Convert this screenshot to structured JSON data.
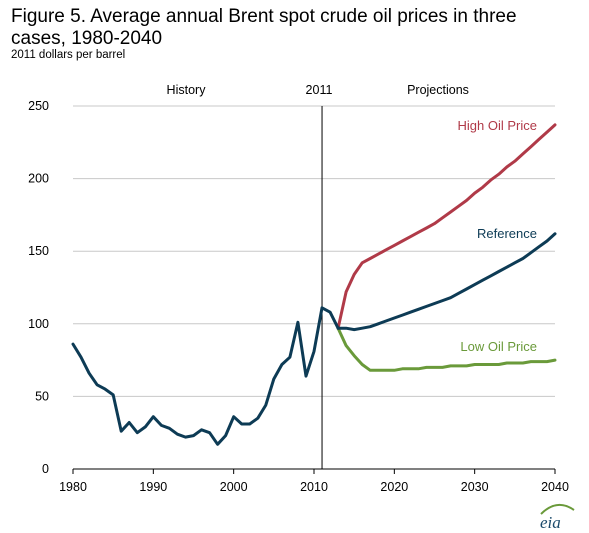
{
  "chart_data": {
    "type": "line",
    "title": "Figure 5. Average annual Brent spot crude oil prices in three cases, 1980-2040",
    "subtitle": "2011 dollars per barrel",
    "xlim": [
      1980,
      2040
    ],
    "ylim": [
      0,
      250
    ],
    "xticks": [
      1980,
      1990,
      2000,
      2010,
      2020,
      2030,
      2040
    ],
    "yticks": [
      0,
      50,
      100,
      150,
      200,
      250
    ],
    "grid": "horizontal",
    "divider": {
      "x": 2011,
      "label": "2011"
    },
    "region_labels": {
      "left": "History",
      "right": "Projections"
    },
    "colors": {
      "history": "#0d3b55",
      "reference": "#0d3b55",
      "high": "#b03a48",
      "low": "#6a9a3a"
    },
    "series": [
      {
        "key": "history",
        "x": [
          1980,
          1981,
          1982,
          1983,
          1984,
          1985,
          1986,
          1987,
          1988,
          1989,
          1990,
          1991,
          1992,
          1993,
          1994,
          1995,
          1996,
          1997,
          1998,
          1999,
          2000,
          2001,
          2002,
          2003,
          2004,
          2005,
          2006,
          2007,
          2008,
          2009,
          2010,
          2011,
          2012,
          2013
        ],
        "y": [
          86,
          77,
          66,
          58,
          55,
          51,
          26,
          32,
          25,
          29,
          36,
          30,
          28,
          24,
          22,
          23,
          27,
          25,
          17,
          23,
          36,
          31,
          31,
          35,
          44,
          62,
          72,
          77,
          101,
          64,
          81,
          111,
          108,
          97
        ]
      },
      {
        "key": "reference",
        "name": "Reference",
        "x": [
          2013,
          2014,
          2015,
          2016,
          2017,
          2018,
          2019,
          2020,
          2021,
          2022,
          2023,
          2024,
          2025,
          2026,
          2027,
          2028,
          2029,
          2030,
          2031,
          2032,
          2033,
          2034,
          2035,
          2036,
          2037,
          2038,
          2039,
          2040
        ],
        "y": [
          97,
          97,
          96,
          97,
          98,
          100,
          102,
          104,
          106,
          108,
          110,
          112,
          114,
          116,
          118,
          121,
          124,
          127,
          130,
          133,
          136,
          139,
          142,
          145,
          149,
          153,
          157,
          162
        ]
      },
      {
        "key": "high",
        "name": "High Oil Price",
        "x": [
          2013,
          2014,
          2015,
          2016,
          2017,
          2018,
          2019,
          2020,
          2021,
          2022,
          2023,
          2024,
          2025,
          2026,
          2027,
          2028,
          2029,
          2030,
          2031,
          2032,
          2033,
          2034,
          2035,
          2036,
          2037,
          2038,
          2039,
          2040
        ],
        "y": [
          97,
          122,
          134,
          142,
          145,
          148,
          151,
          154,
          157,
          160,
          163,
          166,
          169,
          173,
          177,
          181,
          185,
          190,
          194,
          199,
          203,
          208,
          212,
          217,
          222,
          227,
          232,
          237
        ]
      },
      {
        "key": "low",
        "name": "Low Oil Price",
        "x": [
          2013,
          2014,
          2015,
          2016,
          2017,
          2018,
          2019,
          2020,
          2021,
          2022,
          2023,
          2024,
          2025,
          2026,
          2027,
          2028,
          2029,
          2030,
          2031,
          2032,
          2033,
          2034,
          2035,
          2036,
          2037,
          2038,
          2039,
          2040
        ],
        "y": [
          97,
          85,
          78,
          72,
          68,
          68,
          68,
          68,
          69,
          69,
          69,
          70,
          70,
          70,
          71,
          71,
          71,
          72,
          72,
          72,
          72,
          73,
          73,
          73,
          74,
          74,
          74,
          75
        ]
      }
    ]
  },
  "logo": {
    "text": "eia"
  }
}
